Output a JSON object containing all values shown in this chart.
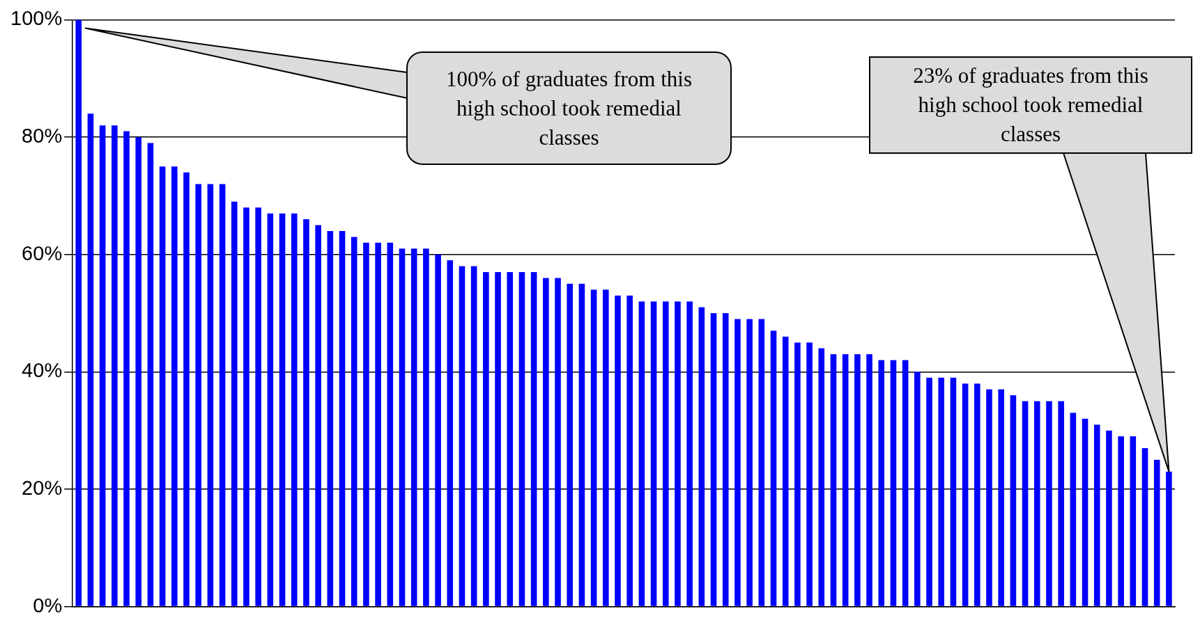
{
  "chart_data": {
    "type": "bar",
    "categories": [
      null,
      null,
      null,
      null,
      null,
      null,
      null,
      null,
      null,
      null,
      null,
      null,
      null,
      null,
      null,
      null,
      null,
      null,
      null,
      null,
      null,
      null,
      null,
      null,
      null,
      null,
      null,
      null,
      null,
      null,
      null,
      null,
      null,
      null,
      null,
      null,
      null,
      null,
      null,
      null,
      null,
      null,
      null,
      null,
      null,
      null,
      null,
      null,
      null,
      null,
      null,
      null,
      null,
      null,
      null,
      null,
      null,
      null,
      null,
      null,
      null,
      null,
      null,
      null,
      null,
      null,
      null,
      null,
      null,
      null,
      null,
      null,
      null,
      null,
      null,
      null,
      null,
      null,
      null,
      null,
      null,
      null,
      null,
      null,
      null,
      null,
      null,
      null,
      null,
      null,
      null,
      null
    ],
    "values": [
      100,
      84,
      82,
      82,
      81,
      80,
      79,
      75,
      75,
      74,
      72,
      72,
      72,
      69,
      68,
      68,
      67,
      67,
      67,
      66,
      65,
      64,
      64,
      63,
      62,
      62,
      62,
      61,
      61,
      61,
      60,
      59,
      58,
      58,
      57,
      57,
      57,
      57,
      57,
      56,
      56,
      55,
      55,
      54,
      54,
      53,
      53,
      52,
      52,
      52,
      52,
      52,
      51,
      50,
      50,
      49,
      49,
      49,
      47,
      46,
      45,
      45,
      44,
      43,
      43,
      43,
      43,
      42,
      42,
      42,
      40,
      39,
      39,
      39,
      38,
      38,
      37,
      37,
      36,
      35,
      35,
      35,
      35,
      33,
      32,
      31,
      30,
      29,
      29,
      27,
      25,
      23
    ],
    "color": "#0000ff",
    "ylim": [
      0,
      100
    ],
    "yticks": [
      {
        "value": 0,
        "label": "0%"
      },
      {
        "value": 20,
        "label": "20%"
      },
      {
        "value": 40,
        "label": "40%"
      },
      {
        "value": 60,
        "label": "60%"
      },
      {
        "value": 80,
        "label": "80%"
      },
      {
        "value": 100,
        "label": "100%"
      }
    ],
    "grid": "y",
    "annotations": [
      "100% of graduates from this high school took remedial classes",
      "23% of graduates from this high school took remedial classes"
    ]
  }
}
